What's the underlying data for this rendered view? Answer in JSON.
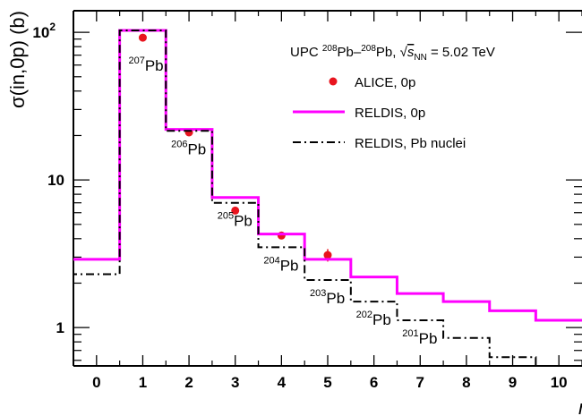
{
  "chart_data": {
    "type": "step",
    "title": "",
    "ylabel": "σ(in,0p) (b)",
    "xlabel": "n",
    "y_scale": "log",
    "ylim": [
      0.55,
      140
    ],
    "xlim": [
      -0.5,
      10.5
    ],
    "x_ticks": [
      "0",
      "1",
      "2",
      "3",
      "4",
      "5",
      "6",
      "7",
      "8",
      "9",
      "10"
    ],
    "y_ticks": [
      {
        "value": 1,
        "label": "1"
      },
      {
        "value": 10,
        "label": "10"
      },
      {
        "value": 100,
        "label": "10",
        "exponent": "2"
      }
    ],
    "panel_label": "(b)",
    "legend": {
      "header": {
        "prefix": "UPC ",
        "sup1": "208",
        "mid": "Pb–",
        "sup2": "208",
        "after": "Pb, ",
        "sqrt_symbol": "√",
        "sqrt_arg": "s",
        "sub": "NN",
        "value": " = 5.02 TeV"
      },
      "placement": "top-right",
      "entries": [
        "ALICE, 0p",
        "RELDIS, 0p",
        "RELDIS, Pb nuclei"
      ]
    },
    "series": [
      {
        "name": "ALICE, 0p",
        "style": "markers",
        "color": "#e8141e",
        "x": [
          1,
          2,
          3,
          4,
          5
        ],
        "y": [
          92,
          21,
          6.2,
          4.2,
          3.1
        ],
        "yerr": [
          0,
          0,
          0,
          0,
          0.3
        ]
      },
      {
        "name": "RELDIS, 0p",
        "style": "step",
        "color": "#ff00ff",
        "x": [
          0,
          1,
          2,
          3,
          4,
          5,
          6,
          7,
          8,
          9,
          10
        ],
        "y": [
          2.9,
          103,
          22,
          7.6,
          4.3,
          2.9,
          2.2,
          1.7,
          1.5,
          1.3,
          1.12
        ]
      },
      {
        "name": "RELDIS, Pb nuclei",
        "style": "step-dashdot",
        "color": "#000000",
        "x": [
          0,
          1,
          2,
          3,
          4,
          5,
          6,
          7,
          8,
          9,
          10
        ],
        "y": [
          2.3,
          103,
          21.5,
          7.0,
          3.5,
          2.1,
          1.5,
          1.12,
          0.85,
          0.63,
          0.53
        ]
      }
    ],
    "annotations": [
      {
        "mass": "207",
        "element": "Pb",
        "x": 1
      },
      {
        "mass": "206",
        "element": "Pb",
        "x": 2
      },
      {
        "mass": "205",
        "element": "Pb",
        "x": 3
      },
      {
        "mass": "204",
        "element": "Pb",
        "x": 4
      },
      {
        "mass": "203",
        "element": "Pb",
        "x": 5
      },
      {
        "mass": "202",
        "element": "Pb",
        "x": 6
      },
      {
        "mass": "201",
        "element": "Pb",
        "x": 7
      }
    ],
    "grid": false
  }
}
